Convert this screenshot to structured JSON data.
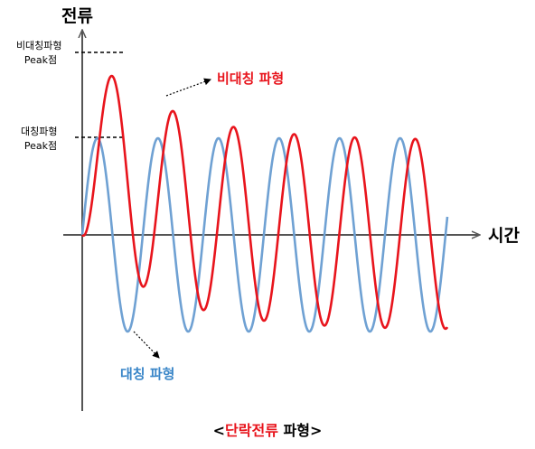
{
  "diagram": {
    "y_axis_title": "전류",
    "x_axis_title": "시간",
    "asym_peak_label": [
      "비대칭파형",
      "Peak점"
    ],
    "sym_peak_label": [
      "대칭파형",
      "Peak점"
    ],
    "asym_series_label": "비대칭 파형",
    "sym_series_label": "대칭 파형",
    "caption": {
      "open": "<",
      "highlight": "단락전류",
      "rest": " 파형>"
    }
  },
  "colors": {
    "asymmetric": "#e8141c",
    "symmetric": "#6fa1d3",
    "axis": "#555555",
    "caption_highlight": "#e8141c",
    "asym_label": "#e8141c",
    "sym_label": "#3a86c8"
  }
}
